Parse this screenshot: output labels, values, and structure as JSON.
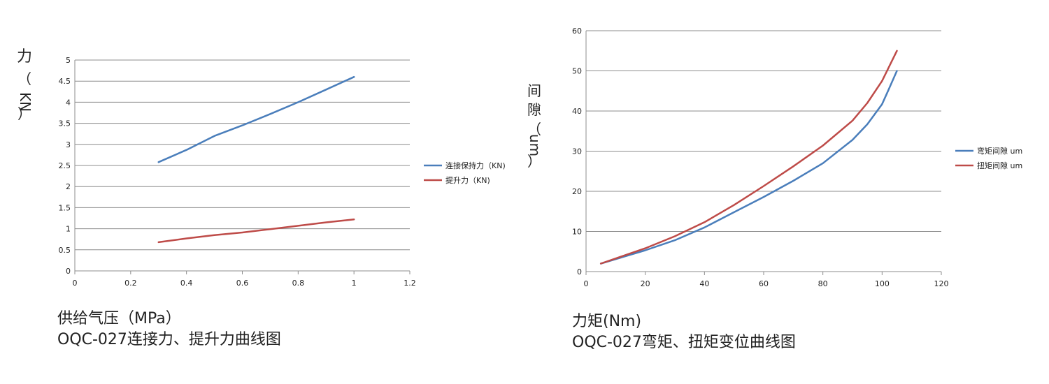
{
  "charts": [
    {
      "caption": {
        "xlabel": "供给气压（MPa）",
        "title": "OQC-027连接力、提升力曲线图"
      },
      "ylabel_chars": [
        "力",
        "（",
        "KN",
        "）"
      ],
      "colors": {
        "grid": "#8c8c8c",
        "axis": "#8c8c8c"
      }
    },
    {
      "caption": {
        "xlabel": "力矩(Nm)",
        "title": "OQC-027弯矩、扭矩变位曲线图"
      },
      "ylabel_chars": [
        "间",
        "隙",
        "（",
        "um",
        "）"
      ],
      "colors": {
        "grid": "#8c8c8c",
        "axis": "#8c8c8c"
      }
    }
  ],
  "chart_data": [
    {
      "type": "line",
      "title": "OQC-027连接力、提升力曲线图",
      "xlabel": "供给气压（MPa）",
      "ylabel": "力（KN）",
      "xlim": [
        0,
        1.2
      ],
      "ylim": [
        0,
        5
      ],
      "xticks": [
        "0",
        "0.2",
        "0.4",
        "0.6",
        "0.8",
        "1",
        "1.2"
      ],
      "yticks": [
        "0",
        "0.5",
        "1",
        "1.5",
        "2",
        "2.5",
        "3",
        "3.5",
        "4",
        "4.5",
        "5"
      ],
      "x": [
        0.3,
        0.4,
        0.5,
        0.6,
        0.7,
        0.8,
        0.9,
        1.0
      ],
      "grid": true,
      "legend_position": "right",
      "series": [
        {
          "name": "连接保持力（KN)",
          "color": "#4a7ebb",
          "values": [
            2.58,
            2.87,
            3.2,
            3.45,
            3.72,
            4.0,
            4.3,
            4.6
          ]
        },
        {
          "name": "提升力（KN)",
          "color": "#be4b48",
          "values": [
            0.68,
            0.77,
            0.85,
            0.91,
            0.99,
            1.07,
            1.15,
            1.22
          ]
        }
      ]
    },
    {
      "type": "line",
      "title": "OQC-027弯矩、扭矩变位曲线图",
      "xlabel": "力矩(Nm)",
      "ylabel": "间隙（um）",
      "xlim": [
        0,
        120
      ],
      "ylim": [
        0,
        60
      ],
      "xticks": [
        "0",
        "20",
        "40",
        "60",
        "80",
        "100",
        "120"
      ],
      "yticks": [
        "0",
        "10",
        "20",
        "30",
        "40",
        "50",
        "60"
      ],
      "grid": true,
      "legend_position": "right",
      "series": [
        {
          "name": "弯矩间隙 um",
          "color": "#4a7ebb",
          "x": [
            5,
            20,
            30,
            40,
            50,
            60,
            70,
            80,
            90,
            95,
            100,
            102,
            105
          ],
          "values": [
            2,
            5.3,
            7.8,
            11,
            14.8,
            18.6,
            22.6,
            27,
            32.8,
            36.7,
            41.7,
            45,
            50
          ]
        },
        {
          "name": "扭矩间隙 um",
          "color": "#be4b48",
          "x": [
            5,
            20,
            30,
            40,
            50,
            60,
            70,
            80,
            90,
            95,
            100,
            105
          ],
          "values": [
            2,
            5.8,
            8.8,
            12.3,
            16.6,
            21.3,
            26.2,
            31.4,
            37.6,
            42,
            47.5,
            55
          ]
        }
      ]
    }
  ]
}
